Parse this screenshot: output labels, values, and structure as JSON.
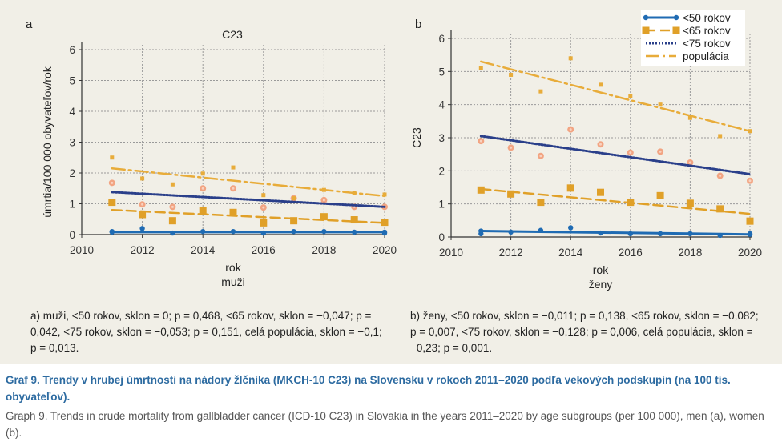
{
  "colors": {
    "lt50": "#1f6bb3",
    "lt65": "#e0a028",
    "lt75_marker": "#f2a482",
    "lt75_line": "#2a3f8a",
    "pop": "#e8ac3a",
    "panel_bg": "#f1efe7",
    "caption_blue": "#2d6ba1"
  },
  "chart_data": [
    {
      "type": "scatter",
      "panel_label": "a",
      "title": "C23",
      "xlabel": "rok",
      "xsublabel": "muži",
      "ylabel": "úmrtia/100 000 obyvateľov/rok",
      "xlim": [
        2010,
        2020
      ],
      "ylim": [
        0,
        6
      ],
      "xticks": [
        2010,
        2012,
        2014,
        2016,
        2018,
        2020
      ],
      "yticks": [
        0,
        1,
        2,
        3,
        4,
        5,
        6
      ],
      "grid": true,
      "legend": null,
      "x": [
        2011,
        2012,
        2013,
        2014,
        2015,
        2016,
        2017,
        2018,
        2019,
        2020
      ],
      "series": [
        {
          "name": "<50 rokov",
          "key": "lt50",
          "values": [
            0.1,
            0.2,
            0.05,
            0.1,
            0.1,
            0.05,
            0.1,
            0.1,
            0.08,
            0.05
          ],
          "trend": [
            0.08,
            0.08
          ]
        },
        {
          "name": "<65 rokov",
          "key": "lt65",
          "values": [
            1.05,
            0.65,
            0.45,
            0.78,
            0.72,
            0.38,
            0.45,
            0.58,
            0.48,
            0.4
          ],
          "trend": [
            0.8,
            0.38
          ]
        },
        {
          "name": "<75 rokov",
          "key": "lt75",
          "values": [
            1.68,
            0.98,
            0.9,
            1.5,
            1.5,
            0.88,
            1.18,
            1.12,
            0.9,
            0.9
          ],
          "trend": [
            1.38,
            0.9
          ]
        },
        {
          "name": "populácia",
          "key": "pop",
          "values": [
            2.5,
            1.82,
            1.63,
            1.98,
            2.18,
            1.28,
            1.18,
            1.45,
            1.35,
            1.3
          ],
          "trend": [
            2.15,
            1.25
          ]
        }
      ],
      "note": "a) muži, <50 rokov, sklon = 0; p = 0,468, <65 rokov, sklon = −0,047; p = 0,042, <75 rokov, sklon = −0,053; p = 0,151, celá populácia, sklon = −0,1; p = 0,013."
    },
    {
      "type": "scatter",
      "panel_label": "b",
      "title": "",
      "xlabel": "rok",
      "xsublabel": "ženy",
      "ylabel": "C23",
      "xlim": [
        2010,
        2020
      ],
      "ylim": [
        0,
        6
      ],
      "xticks": [
        2010,
        2012,
        2014,
        2016,
        2018,
        2020
      ],
      "yticks": [
        0,
        1,
        2,
        3,
        4,
        5,
        6
      ],
      "grid": true,
      "legend": "top-right",
      "x": [
        2011,
        2012,
        2013,
        2014,
        2015,
        2016,
        2017,
        2018,
        2019,
        2020
      ],
      "series": [
        {
          "name": "<50 rokov",
          "key": "lt50",
          "values": [
            0.1,
            0.15,
            0.2,
            0.28,
            0.12,
            0.1,
            0.1,
            0.1,
            0.05,
            0.1
          ],
          "trend": [
            0.18,
            0.08
          ]
        },
        {
          "name": "<65 rokov",
          "key": "lt65",
          "values": [
            1.42,
            1.3,
            1.05,
            1.48,
            1.35,
            1.05,
            1.25,
            1.02,
            0.85,
            0.48
          ],
          "trend": [
            1.45,
            0.7
          ]
        },
        {
          "name": "<75 rokov",
          "key": "lt75",
          "values": [
            2.9,
            2.7,
            2.45,
            3.25,
            2.8,
            2.55,
            2.58,
            2.25,
            1.85,
            1.7
          ],
          "trend": [
            3.05,
            1.9
          ]
        },
        {
          "name": "populácia",
          "key": "pop",
          "values": [
            5.1,
            4.9,
            4.4,
            5.4,
            4.6,
            4.25,
            4.0,
            3.6,
            3.05,
            3.2
          ],
          "trend": [
            5.3,
            3.2
          ]
        }
      ],
      "note": "b) ženy, <50 rokov, sklon = −0,011; p = 0,138, <65 rokov, sklon = −0,082; p = 0,007, <75 rokov, sklon = −0,128; p = 0,006, celá populácia, sklon = −0,23; p = 0,001."
    }
  ],
  "caption": {
    "sk": "Graf 9. Trendy v hrubej úmrtnosti na nádory žlčníka (MKCH-10 C23) na Slovensku v rokoch 2011–2020 podľa vekových podskupín (na 100 tis. obyvateľov).",
    "en": "Graph 9. Trends in crude mortality from gallbladder cancer (ICD-10 C23) in Slovakia in the years 2011–2020 by age subgroups (per 100 000), men (a), women (b)."
  }
}
